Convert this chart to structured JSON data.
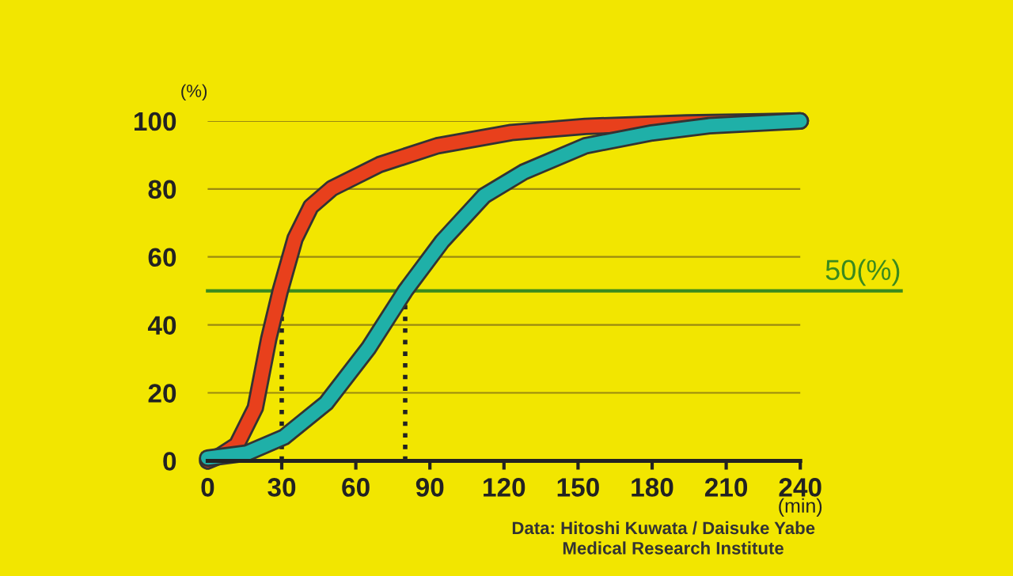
{
  "chart_data": {
    "type": "line",
    "x": [
      0,
      5,
      11.8,
      19.3,
      24.7,
      29.4,
      35.4,
      41.8,
      50.4,
      69.7,
      93,
      123,
      153,
      194,
      225,
      240
    ],
    "series": [
      {
        "color": "#e8401c",
        "values": [
          0,
          1.5,
          4.7,
          15.6,
          35.8,
          50,
          65.4,
          74.8,
          80.2,
          87.2,
          92.7,
          96.6,
          98.4,
          99.4,
          99.8,
          100
        ]
      },
      {
        "color": "#1fb0a8",
        "x": [
          0,
          16,
          31,
          48,
          65,
          80,
          95,
          112,
          128,
          153,
          180,
          203,
          240
        ],
        "values": [
          0.8,
          2.3,
          7,
          17,
          33,
          50,
          64.6,
          78,
          85,
          92.7,
          96.5,
          98.6,
          100
        ]
      }
    ],
    "xlim": [
      0,
      240
    ],
    "xticks": [
      0,
      30,
      60,
      90,
      120,
      150,
      180,
      210,
      240
    ],
    "ylim": [
      0,
      100
    ],
    "yticks": [
      0,
      20,
      40,
      60,
      80,
      100
    ],
    "xlabel": "(min)",
    "ylabel": "(%)",
    "grid": "y",
    "marker": "none",
    "line_style": "solid",
    "ref_lines": [
      {
        "axis": "y",
        "value": 50,
        "label": "50(%)",
        "color": "#3a8a1e",
        "line_style": "solid"
      },
      {
        "axis": "x",
        "value": 30,
        "color": "#222222",
        "line_style": "dotted"
      },
      {
        "axis": "x",
        "value": 80,
        "color": "#222222",
        "line_style": "dotted"
      }
    ],
    "annotations": [
      "Data: Hitoshi Kuwata / Daisuke Yabe",
      "Medical Research Institute"
    ]
  }
}
